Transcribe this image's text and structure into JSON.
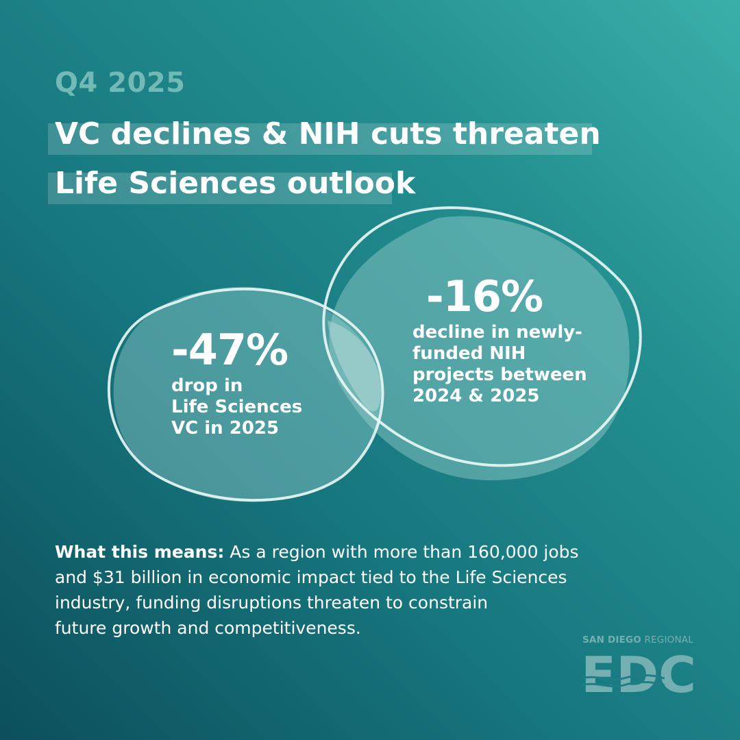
{
  "header": {
    "quarter": "Q4 2025",
    "headline_line1": "VC declines & NIH cuts threaten",
    "headline_line2": "Life Sciences outlook"
  },
  "stats": [
    {
      "value": "-47%",
      "description": "drop in\nLife Sciences\nVC in 2025"
    },
    {
      "value": "-16%",
      "description": "decline in newly-\nfunded NIH\nprojects between\n2024 & 2025"
    }
  ],
  "what_this_means": {
    "label": "What this means:",
    "line1": " As a region with more than 160,000 jobs",
    "line2": "and $31 billion in economic impact tied to the Life Sciences",
    "line3": "industry, funding disruptions threaten to constrain",
    "line4": "future growth and competitiveness."
  },
  "logo": {
    "top_bold": "SAN DIEGO",
    "top_regular": " REGIONAL",
    "mark": "EDC"
  },
  "colors": {
    "background_light": "#3aafaa",
    "background_dark": "#0c4f5c",
    "quarter_text": "#73b9b6",
    "logo": "#74afb1"
  }
}
